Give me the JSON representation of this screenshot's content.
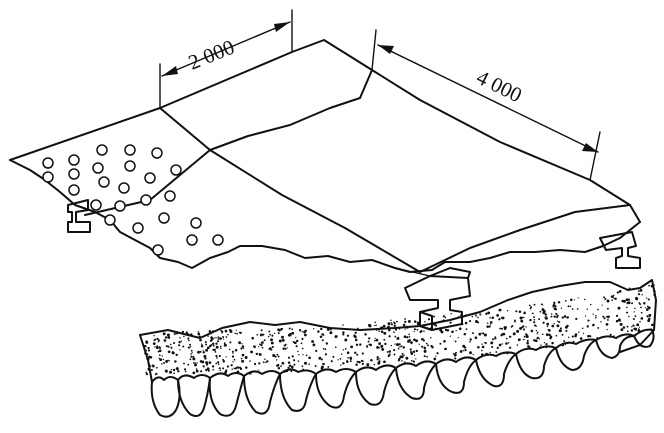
{
  "dimensions": {
    "short": "2 000",
    "long": "4 000"
  },
  "colors": {
    "ink": "#111111",
    "paper": "#ffffff"
  }
}
